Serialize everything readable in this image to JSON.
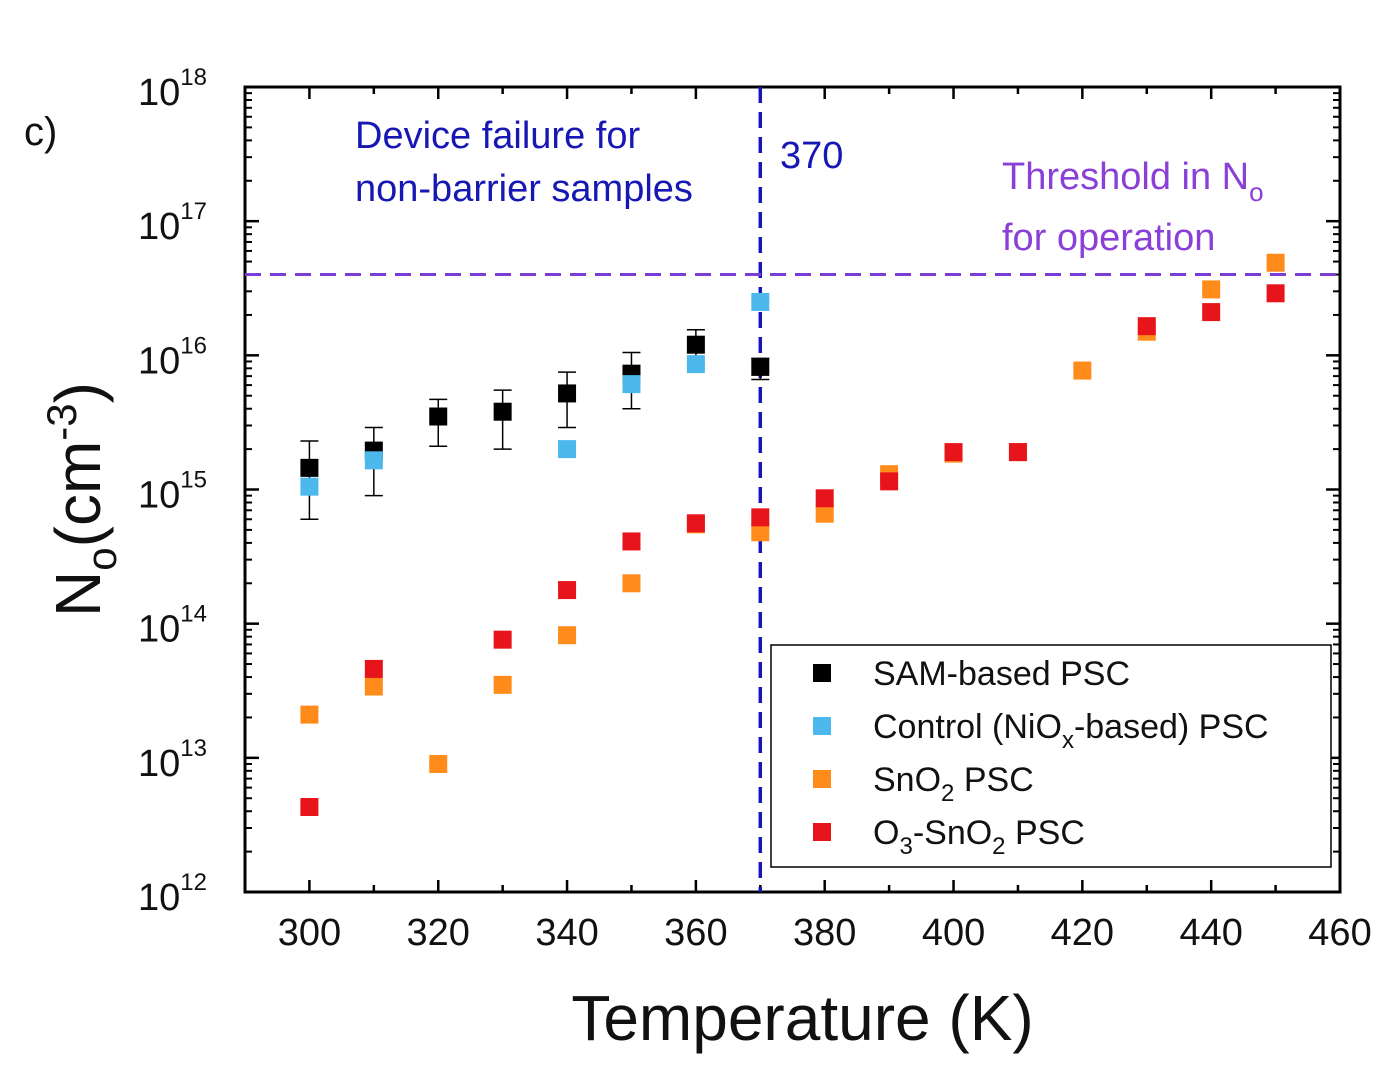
{
  "panel_label": "c)",
  "chart_data": {
    "type": "scatter",
    "xlabel": "Temperature (K)",
    "ylabel": {
      "base": "N",
      "sub": "o",
      "unit_pre": "(cm",
      "unit_sup": "-3",
      "unit_post": ")"
    },
    "xlim": [
      290,
      460
    ],
    "ylim_log10": [
      12,
      18
    ],
    "x_ticks": [
      300,
      320,
      340,
      360,
      380,
      400,
      420,
      440,
      460
    ],
    "y_ticks": [
      {
        "exp": 12,
        "base": "10",
        "power": "12"
      },
      {
        "exp": 13,
        "base": "10",
        "power": "13"
      },
      {
        "exp": 14,
        "base": "10",
        "power": "14"
      },
      {
        "exp": 15,
        "base": "10",
        "power": "15"
      },
      {
        "exp": 16,
        "base": "10",
        "power": "16"
      },
      {
        "exp": 17,
        "base": "10",
        "power": "17"
      },
      {
        "exp": 18,
        "base": "10",
        "power": "18"
      }
    ],
    "series": [
      {
        "name": "SAM-based PSC",
        "color": "#000000",
        "x": [
          300,
          310,
          320,
          330,
          340,
          350,
          360,
          370
        ],
        "y": [
          1450000000000000.0,
          1950000000000000.0,
          3500000000000000.0,
          3800000000000000.0,
          5200000000000000.0,
          7300000000000000.0,
          1.2e+16,
          8200000000000000.0
        ],
        "err_low": [
          600000000000000.0,
          900000000000000.0,
          2100000000000000.0,
          2000000000000000.0,
          2900000000000000.0,
          4000000000000000.0,
          8500000000000000.0,
          6600000000000000.0
        ],
        "err_high": [
          2300000000000000.0,
          2900000000000000.0,
          4700000000000000.0,
          5500000000000000.0,
          7500000000000000.0,
          1.05e+16,
          1.55e+16,
          9500000000000000.0
        ]
      },
      {
        "name": "Control (NiOx-based) PSC",
        "color": "#4DB8EC",
        "x": [
          300,
          310,
          340,
          350,
          360,
          370
        ],
        "y": [
          1050000000000000.0,
          1650000000000000.0,
          2000000000000000.0,
          6100000000000000.0,
          8600000000000000.0,
          2.5e+16
        ]
      },
      {
        "name": "SnO2 PSC",
        "color": "#FF8C1A",
        "x": [
          300,
          310,
          320,
          330,
          340,
          350,
          360,
          370,
          380,
          390,
          400,
          410,
          420,
          430,
          440,
          450
        ],
        "y": [
          21000000000000.0,
          34000000000000.0,
          9000000000000.0,
          35000000000000.0,
          82000000000000.0,
          200000000000000.0,
          550000000000000.0,
          480000000000000.0,
          660000000000000.0,
          1300000000000000.0,
          1850000000000000.0,
          1900000000000000.0,
          7700000000000000.0,
          1.5e+16,
          3.1e+16,
          4.9e+16
        ]
      },
      {
        "name": "O3-SnO2 PSC",
        "color": "#E8141B",
        "x": [
          300,
          310,
          330,
          340,
          350,
          360,
          370,
          380,
          390,
          400,
          410,
          430,
          440,
          450
        ],
        "y": [
          4300000000000.0,
          46000000000000.0,
          76000000000000.0,
          178000000000000.0,
          410000000000000.0,
          560000000000000.0,
          620000000000000.0,
          860000000000000.0,
          1150000000000000.0,
          1900000000000000.0,
          1900000000000000.0,
          1.65e+16,
          2.1e+16,
          2.9e+16
        ]
      }
    ],
    "reference_lines": [
      {
        "orientation": "vertical",
        "x": 370,
        "color": "#1717B3",
        "style": "dashed"
      },
      {
        "orientation": "horizontal",
        "y": 4e+16,
        "color": "#7A3DD6",
        "style": "dashed"
      }
    ],
    "annotations": [
      {
        "id": "failure",
        "lines": [
          "Device failure for",
          "non-barrier samples"
        ],
        "color": "#1717B3"
      },
      {
        "id": "vline-label",
        "text": "370",
        "color": "#1717B3"
      },
      {
        "id": "threshold",
        "line1_text": "Threshold in N",
        "line1_sub": "o",
        "line2_text": "for operation",
        "color": "#8A3FD6"
      }
    ],
    "legend": {
      "position": "bottom-right",
      "entries": [
        {
          "parts": [
            {
              "t": "SAM-based PSC"
            }
          ]
        },
        {
          "parts": [
            {
              "t": "Control (NiO"
            },
            {
              "t": "x",
              "sub": true
            },
            {
              "t": "-based) PSC"
            }
          ]
        },
        {
          "parts": [
            {
              "t": "SnO"
            },
            {
              "t": "2",
              "sub": true
            },
            {
              "t": " PSC"
            }
          ]
        },
        {
          "parts": [
            {
              "t": "O"
            },
            {
              "t": "3",
              "sub": true
            },
            {
              "t": "-SnO"
            },
            {
              "t": "2",
              "sub": true
            },
            {
              "t": " PSC"
            }
          ]
        }
      ]
    }
  }
}
